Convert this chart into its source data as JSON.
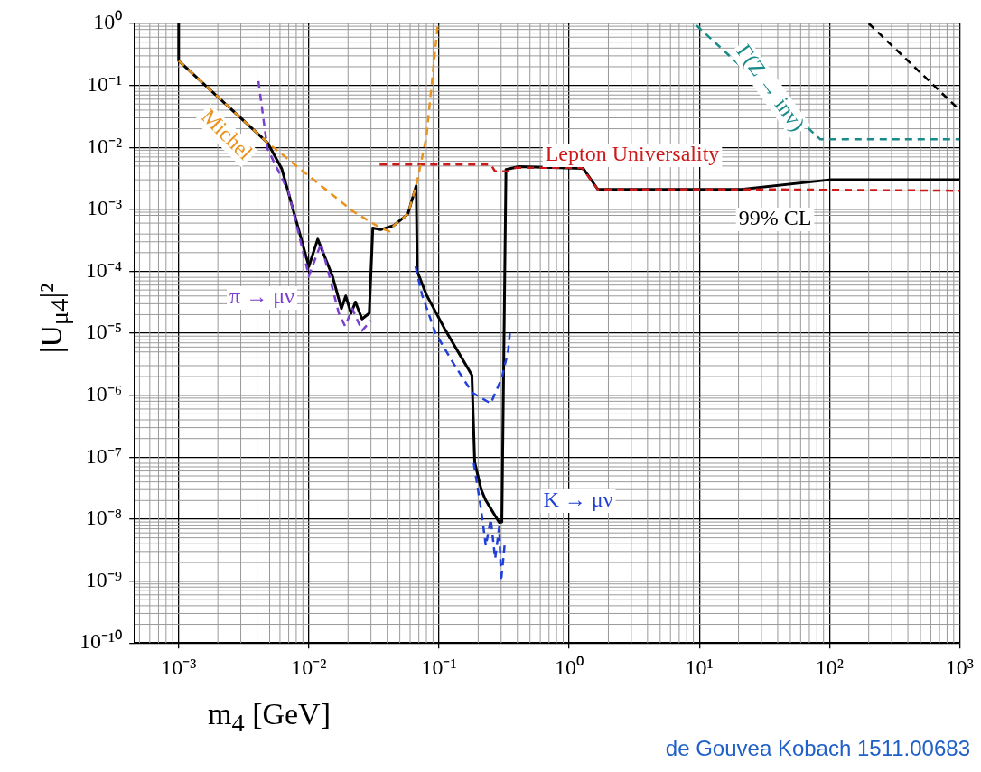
{
  "chart_data": {
    "type": "line",
    "xlabel": "m$_{4}$ [GeV]",
    "ylabel": "|U$_{μ4}$|²",
    "log": "xy",
    "xlim": [
      0.00046,
      1000
    ],
    "ylim": [
      1e-10,
      1
    ],
    "xticks": [
      {
        "value": 0.001,
        "label": "10⁻³"
      },
      {
        "value": 0.01,
        "label": "10⁻²"
      },
      {
        "value": 0.1,
        "label": "10⁻¹"
      },
      {
        "value": 1,
        "label": "10⁰"
      },
      {
        "value": 10,
        "label": "10¹"
      },
      {
        "value": 100,
        "label": "10²"
      },
      {
        "value": 1000,
        "label": "10³"
      }
    ],
    "yticks": [
      {
        "value": 1e-10,
        "label": "10⁻¹⁰"
      },
      {
        "value": 1e-09,
        "label": "10⁻⁹"
      },
      {
        "value": 1e-08,
        "label": "10⁻⁸"
      },
      {
        "value": 1e-07,
        "label": "10⁻⁷"
      },
      {
        "value": 1e-06,
        "label": "10⁻⁶"
      },
      {
        "value": 1e-05,
        "label": "10⁻⁵"
      },
      {
        "value": 0.0001,
        "label": "10⁻⁴"
      },
      {
        "value": 0.001,
        "label": "10⁻³"
      },
      {
        "value": 0.01,
        "label": "10⁻²"
      },
      {
        "value": 0.1,
        "label": "10⁻¹"
      },
      {
        "value": 1,
        "label": "10⁰"
      }
    ],
    "grid": true,
    "legend": false,
    "marker": "none",
    "series": [
      {
        "name": "Michel",
        "color": "#e8931e",
        "line_style": "dashed",
        "x": [
          0.001,
          0.0048,
          0.0218,
          0.0356,
          0.0418,
          0.045,
          0.0576,
          0.0668,
          0.08,
          0.098
        ],
        "values": [
          0.25,
          0.012,
          0.00093,
          0.0005,
          0.00044,
          0.00055,
          0.00084,
          0.0024,
          0.0148,
          1
        ]
      },
      {
        "name": "π → μν",
        "color": "#7b3fd0",
        "line_style": "dashed",
        "x": [
          0.0041,
          0.0048,
          0.007,
          0.01,
          0.0124,
          0.017,
          0.019,
          0.0216,
          0.0256,
          0.03
        ],
        "values": [
          0.117,
          0.0096,
          0.0019,
          8.4e-05,
          0.00028,
          2.1e-05,
          1.3e-05,
          2.5e-05,
          1.1e-05,
          1.6e-05
        ]
      },
      {
        "name": "K → μν",
        "color": "#1f3fd8",
        "line_style": "dashed",
        "x": [
          0.066,
          0.074,
          0.094,
          0.13,
          0.18,
          0.25,
          0.304,
          0.34,
          0.35,
          null,
          0.185,
          0.21,
          0.229,
          0.25,
          0.27,
          0.29,
          0.3,
          0.32
        ],
        "values": [
          0.00012,
          4.2e-05,
          1e-05,
          3.2e-06,
          1.1e-06,
          7.4e-07,
          1.9e-06,
          5.2e-06,
          1e-05,
          null,
          8e-08,
          1.5e-08,
          3.7e-09,
          1e-08,
          2.3e-09,
          7.5e-09,
          1e-09,
          4e-09
        ]
      },
      {
        "name": "Lepton Universality",
        "color": "#cc1a1a",
        "line_style": "dashed",
        "x": [
          0.035,
          0.25,
          0.27,
          0.34,
          0.39,
          1.25,
          1.66,
          32,
          1000
        ],
        "values": [
          0.0053,
          0.0053,
          0.0041,
          0.0041,
          0.0047,
          0.0047,
          0.0021,
          0.0021,
          0.002
        ]
      },
      {
        "name": "Γ(Z → inv)",
        "color": "#1a8a8a",
        "line_style": "dashed",
        "x": [
          9.5,
          85,
          1000
        ],
        "values": [
          0.93,
          0.0135,
          0.0135
        ]
      },
      {
        "color": "#000000",
        "line_style": "dashed",
        "x": [
          200,
          1000
        ],
        "values": [
          1,
          0.04
        ]
      },
      {
        "color": "#000000",
        "line_style": "solid",
        "x": [
          0.001,
          0.001,
          0.0048,
          0.0062,
          0.01,
          0.0117,
          0.0152,
          0.0178,
          0.0192,
          0.0211,
          0.0228,
          0.0256,
          0.0291,
          0.031,
          0.0356,
          0.045,
          0.0576,
          0.0668,
          0.068,
          0.08,
          0.11,
          0.179,
          0.188,
          0.211,
          0.229,
          0.249,
          0.29,
          0.304,
          0.327,
          0.41,
          1.28,
          1.66,
          21,
          100,
          1000
        ],
        "values": [
          1,
          0.25,
          0.012,
          0.0045,
          0.00012,
          0.00033,
          8.3e-05,
          2.5e-05,
          4e-05,
          2.1e-05,
          3.2e-05,
          1.7e-05,
          2.1e-05,
          0.0005,
          0.00047,
          0.00055,
          0.00084,
          0.0024,
          0.0001,
          4.2e-05,
          1.2e-05,
          2.1e-06,
          8.3e-08,
          3e-08,
          2e-08,
          1.5e-08,
          8.9e-09,
          9e-09,
          0.0044,
          0.0049,
          0.0046,
          0.0021,
          0.0021,
          0.003,
          0.003
        ]
      }
    ],
    "annotations": [
      "99% CL",
      "de Gouvea Kobach 1511.00683"
    ]
  }
}
